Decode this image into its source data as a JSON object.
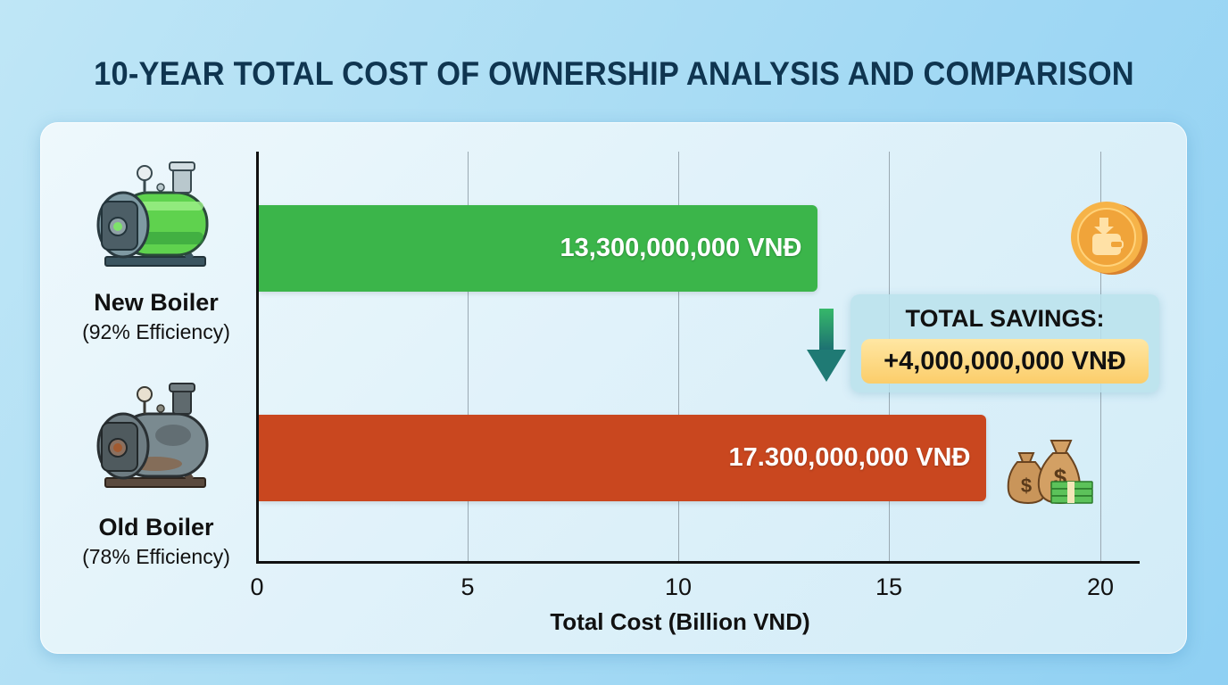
{
  "title": "10-YEAR TOTAL COST OF OWNERSHIP ANALYSIS AND COMPARISON",
  "categories": [
    {
      "name": "New Boiler",
      "subtitle": "(92% Efficiency)",
      "icon": "new-boiler-icon"
    },
    {
      "name": "Old Boiler",
      "subtitle": "(78% Efficiency)",
      "icon": "old-boiler-icon"
    }
  ],
  "bars": [
    {
      "label": "13,300,000,000 VNĐ",
      "value": 13.3,
      "color": "#3bb54a"
    },
    {
      "label": "17.300,000,000 VNĐ",
      "value": 17.3,
      "color": "#c9471f"
    }
  ],
  "x_axis": {
    "title": "Total Cost (Billion VND)",
    "ticks": [
      "0",
      "5",
      "10",
      "15",
      "20"
    ]
  },
  "savings": {
    "title": "TOTAL SAVINGS:",
    "value": "+4,000,000,000 VNĐ",
    "icons": [
      "down-arrow-icon",
      "coin-wallet-icon",
      "money-bags-icon"
    ]
  },
  "colors": {
    "new": "#3bb54a",
    "old": "#c9471f",
    "title": "#0f3550",
    "savings_highlight": "#fbcd6a",
    "arrow": "#1f8a7a"
  },
  "chart_data": {
    "type": "bar",
    "orientation": "horizontal",
    "title": "10-YEAR TOTAL COST OF OWNERSHIP ANALYSIS AND COMPARISON",
    "categories": [
      "New Boiler (92% Efficiency)",
      "Old Boiler (78% Efficiency)"
    ],
    "values": [
      13.3,
      17.3
    ],
    "data_labels": [
      "13,300,000,000 VNĐ",
      "17.300,000,000 VNĐ"
    ],
    "xlabel": "Total Cost (Billion VND)",
    "ylabel": "",
    "xlim": [
      0,
      20
    ],
    "xticks": [
      0,
      5,
      10,
      15,
      20
    ],
    "grid": "vertical",
    "legend": "none",
    "annotations": [
      "TOTAL SAVINGS: +4,000,000,000 VNĐ"
    ]
  }
}
